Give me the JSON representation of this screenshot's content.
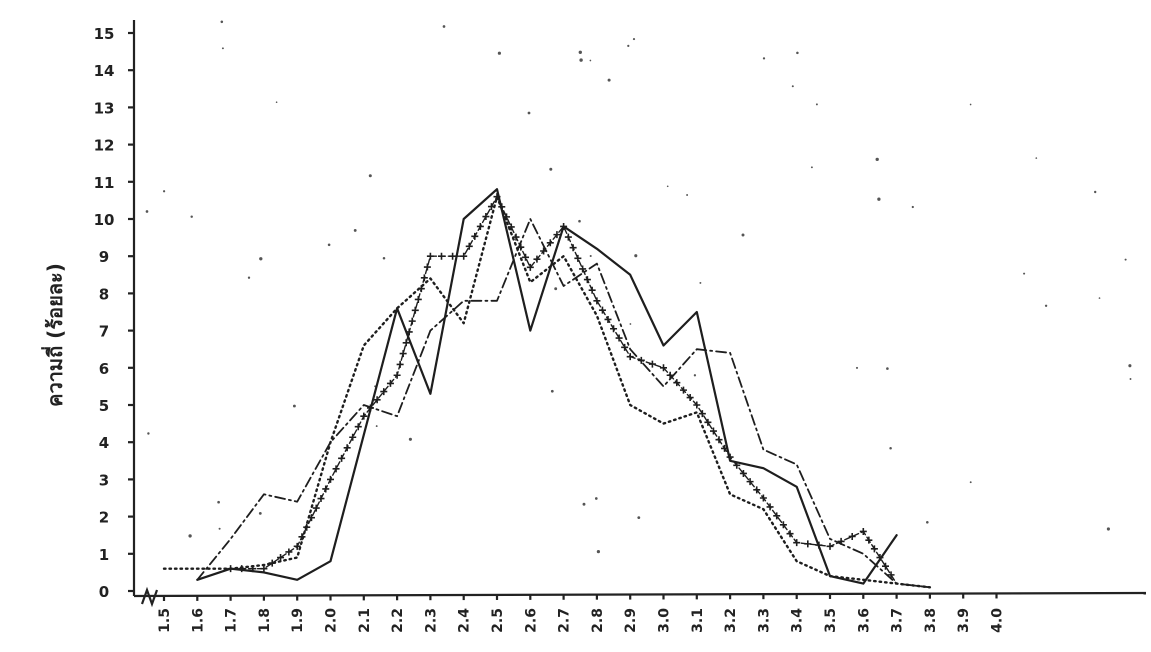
{
  "chart_data": {
    "type": "line",
    "title": "",
    "xlabel": "",
    "ylabel": "ความถี่ (ร้อยละ)",
    "x": [
      "1.5",
      "1.6",
      "1.7",
      "1.8",
      "1.9",
      "2.0",
      "2.1",
      "2.2",
      "2.3",
      "2.4",
      "2.5",
      "2.6",
      "2.7",
      "2.8",
      "2.9",
      "3.0",
      "3.1",
      "3.2",
      "3.3",
      "3.4",
      "3.5",
      "3.6",
      "3.7",
      "3.8",
      "3.9",
      "4.0"
    ],
    "y_ticks": [
      "0",
      "1",
      "2",
      "3",
      "4",
      "5",
      "6",
      "7",
      "8",
      "9",
      "10",
      "11",
      "12",
      "13",
      "14",
      "15"
    ],
    "ylim": [
      0,
      15
    ],
    "grid": false,
    "legend": "none",
    "series": [
      {
        "style": "solid",
        "points": [
          [
            1.6,
            0.3
          ],
          [
            1.7,
            0.6
          ],
          [
            1.8,
            0.5
          ],
          [
            1.9,
            0.3
          ],
          [
            2.0,
            0.8
          ],
          [
            2.1,
            4.2
          ],
          [
            2.2,
            7.6
          ],
          [
            2.3,
            5.3
          ],
          [
            2.4,
            10.0
          ],
          [
            2.5,
            10.8
          ],
          [
            2.6,
            7.0
          ],
          [
            2.7,
            9.8
          ],
          [
            2.8,
            9.2
          ],
          [
            2.9,
            8.5
          ],
          [
            3.0,
            6.6
          ],
          [
            3.1,
            7.5
          ],
          [
            3.2,
            3.5
          ],
          [
            3.3,
            3.3
          ],
          [
            3.4,
            2.8
          ],
          [
            3.5,
            0.4
          ],
          [
            3.6,
            0.2
          ],
          [
            3.7,
            1.5
          ]
        ]
      },
      {
        "style": "dotted",
        "points": [
          [
            1.5,
            0.6
          ],
          [
            1.6,
            0.6
          ],
          [
            1.7,
            0.6
          ],
          [
            1.8,
            0.7
          ],
          [
            1.9,
            0.9
          ],
          [
            2.0,
            4.0
          ],
          [
            2.1,
            6.6
          ],
          [
            2.2,
            7.6
          ],
          [
            2.3,
            8.4
          ],
          [
            2.4,
            7.2
          ],
          [
            2.5,
            10.6
          ],
          [
            2.6,
            8.3
          ],
          [
            2.7,
            9.0
          ],
          [
            2.8,
            7.4
          ],
          [
            2.9,
            5.0
          ],
          [
            3.0,
            4.5
          ],
          [
            3.1,
            4.8
          ],
          [
            3.2,
            2.6
          ],
          [
            3.3,
            2.2
          ],
          [
            3.4,
            0.8
          ],
          [
            3.5,
            0.4
          ],
          [
            3.6,
            0.3
          ],
          [
            3.7,
            0.2
          ],
          [
            3.8,
            0.1
          ]
        ]
      },
      {
        "style": "dash-dot",
        "points": [
          [
            1.6,
            0.3
          ],
          [
            1.7,
            1.4
          ],
          [
            1.8,
            2.6
          ],
          [
            1.9,
            2.4
          ],
          [
            2.0,
            4.0
          ],
          [
            2.1,
            5.0
          ],
          [
            2.2,
            4.7
          ],
          [
            2.3,
            7.0
          ],
          [
            2.4,
            7.8
          ],
          [
            2.5,
            7.8
          ],
          [
            2.6,
            10.0
          ],
          [
            2.7,
            8.2
          ],
          [
            2.8,
            8.8
          ],
          [
            2.9,
            6.5
          ],
          [
            3.0,
            5.5
          ],
          [
            3.1,
            6.5
          ],
          [
            3.2,
            6.4
          ],
          [
            3.3,
            3.8
          ],
          [
            3.4,
            3.4
          ],
          [
            3.5,
            1.4
          ],
          [
            3.6,
            1.0
          ],
          [
            3.7,
            0.2
          ],
          [
            3.8,
            0.1
          ]
        ]
      },
      {
        "style": "plus-marked",
        "points": [
          [
            1.7,
            0.6
          ],
          [
            1.8,
            0.6
          ],
          [
            1.9,
            1.2
          ],
          [
            2.0,
            3.0
          ],
          [
            2.1,
            4.7
          ],
          [
            2.2,
            5.8
          ],
          [
            2.3,
            9.0
          ],
          [
            2.4,
            9.0
          ],
          [
            2.5,
            10.6
          ],
          [
            2.6,
            8.7
          ],
          [
            2.7,
            9.8
          ],
          [
            2.8,
            7.8
          ],
          [
            2.9,
            6.3
          ],
          [
            3.0,
            6.0
          ],
          [
            3.1,
            5.0
          ],
          [
            3.2,
            3.6
          ],
          [
            3.3,
            2.5
          ],
          [
            3.4,
            1.3
          ],
          [
            3.5,
            1.2
          ],
          [
            3.6,
            1.6
          ],
          [
            3.7,
            0.2
          ]
        ]
      }
    ]
  }
}
